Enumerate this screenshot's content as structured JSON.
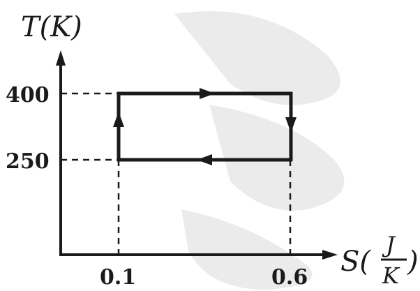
{
  "diagram": {
    "y_axis_label": "T(K)",
    "x_axis_label_prefix": "S(",
    "x_axis_unit_numerator": "J",
    "x_axis_unit_denominator": "K",
    "x_axis_label_suffix": ")",
    "y_ticks": [
      "400",
      "250"
    ],
    "x_ticks": [
      "0.1",
      "0.6"
    ],
    "cycle": {
      "s_range": [
        0.1,
        0.6
      ],
      "t_range": [
        250,
        400
      ],
      "direction": "clockwise"
    },
    "colors": {
      "ink": "#1a1a1a",
      "watermark": "#ebebeb"
    }
  }
}
